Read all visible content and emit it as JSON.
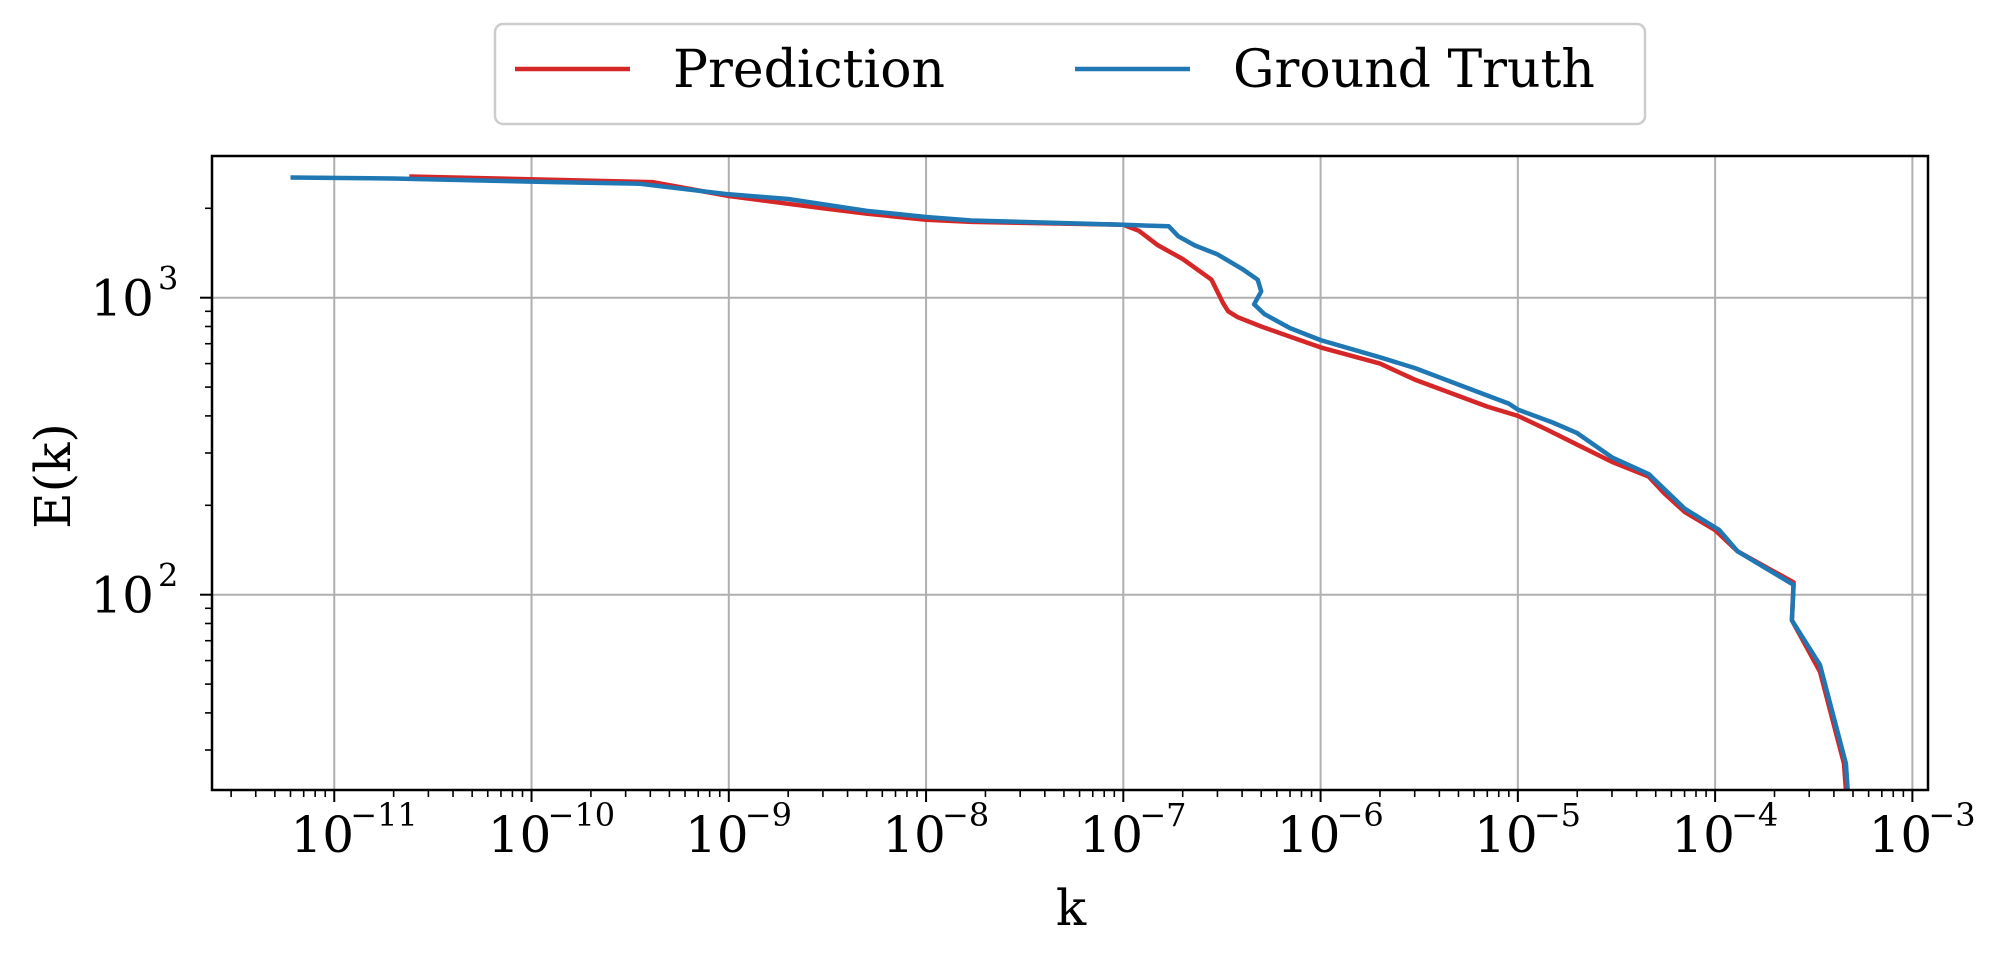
{
  "chart_data": {
    "type": "line",
    "xlabel": "k",
    "ylabel": "E(k)",
    "xscale": "log",
    "yscale": "log",
    "xlim": [
      2.4e-12,
      0.0012
    ],
    "ylim": [
      22,
      3000
    ],
    "grid": true,
    "legend_placement": "top-center",
    "x_ticks": [
      {
        "value": 1e-11,
        "base": "10",
        "exp": "−11"
      },
      {
        "value": 1e-10,
        "base": "10",
        "exp": "−10"
      },
      {
        "value": 1e-09,
        "base": "10",
        "exp": "−9"
      },
      {
        "value": 1e-08,
        "base": "10",
        "exp": "−8"
      },
      {
        "value": 1e-07,
        "base": "10",
        "exp": "−7"
      },
      {
        "value": 1e-06,
        "base": "10",
        "exp": "−6"
      },
      {
        "value": 1e-05,
        "base": "10",
        "exp": "−5"
      },
      {
        "value": 0.0001,
        "base": "10",
        "exp": "−4"
      },
      {
        "value": 0.001,
        "base": "10",
        "exp": "−3"
      }
    ],
    "y_ticks": [
      {
        "value": 100,
        "base": "10",
        "exp": "2"
      },
      {
        "value": 1000,
        "base": "10",
        "exp": "3"
      }
    ],
    "series": [
      {
        "name": "Prediction",
        "color": "#d62728",
        "points": [
          [
            2.4e-11,
            2560
          ],
          [
            4.1e-10,
            2450
          ],
          [
            1e-09,
            2200
          ],
          [
            3e-09,
            2000
          ],
          [
            5e-09,
            1920
          ],
          [
            1e-08,
            1830
          ],
          [
            1.7e-08,
            1800
          ],
          [
            1e-07,
            1760
          ],
          [
            1.2e-07,
            1680
          ],
          [
            1.5e-07,
            1500
          ],
          [
            2e-07,
            1350
          ],
          [
            2.8e-07,
            1150
          ],
          [
            3.2e-07,
            960
          ],
          [
            3.4e-07,
            900
          ],
          [
            3.8e-07,
            860
          ],
          [
            5e-07,
            800
          ],
          [
            1e-06,
            680
          ],
          [
            2e-06,
            600
          ],
          [
            3e-06,
            530
          ],
          [
            7e-06,
            430
          ],
          [
            1e-05,
            400
          ],
          [
            1.4e-05,
            360
          ],
          [
            2e-05,
            320
          ],
          [
            3e-05,
            280
          ],
          [
            4.6e-05,
            250
          ],
          [
            5.5e-05,
            220
          ],
          [
            7e-05,
            190
          ],
          [
            0.0001,
            165
          ],
          [
            0.00013,
            140
          ],
          [
            0.00025,
            110
          ],
          [
            0.000245,
            82
          ],
          [
            0.00034,
            55
          ],
          [
            0.00045,
            27
          ],
          [
            0.00046,
            22
          ]
        ]
      },
      {
        "name": "Ground Truth",
        "color": "#1f77b4",
        "points": [
          [
            6e-12,
            2540
          ],
          [
            2e-11,
            2520
          ],
          [
            1.3e-10,
            2450
          ],
          [
            3.5e-10,
            2420
          ],
          [
            1e-09,
            2230
          ],
          [
            2e-09,
            2150
          ],
          [
            5e-09,
            1960
          ],
          [
            1e-08,
            1870
          ],
          [
            1.7e-08,
            1820
          ],
          [
            1e-07,
            1760
          ],
          [
            1.7e-07,
            1740
          ],
          [
            1.9e-07,
            1610
          ],
          [
            2.3e-07,
            1500
          ],
          [
            3e-07,
            1400
          ],
          [
            4e-07,
            1250
          ],
          [
            4.8e-07,
            1150
          ],
          [
            5e-07,
            1050
          ],
          [
            4.6e-07,
            950
          ],
          [
            5.2e-07,
            880
          ],
          [
            7e-07,
            790
          ],
          [
            1e-06,
            720
          ],
          [
            2e-06,
            630
          ],
          [
            3e-06,
            580
          ],
          [
            5e-06,
            510
          ],
          [
            9e-06,
            440
          ],
          [
            1e-05,
            420
          ],
          [
            1.5e-05,
            380
          ],
          [
            2e-05,
            350
          ],
          [
            3e-05,
            290
          ],
          [
            4.6e-05,
            255
          ],
          [
            7e-05,
            195
          ],
          [
            0.000105,
            165
          ],
          [
            0.00013,
            140
          ],
          [
            0.00025,
            108
          ],
          [
            0.000245,
            82
          ],
          [
            0.00034,
            58
          ],
          [
            0.00046,
            27
          ],
          [
            0.00047,
            22
          ]
        ]
      }
    ]
  }
}
